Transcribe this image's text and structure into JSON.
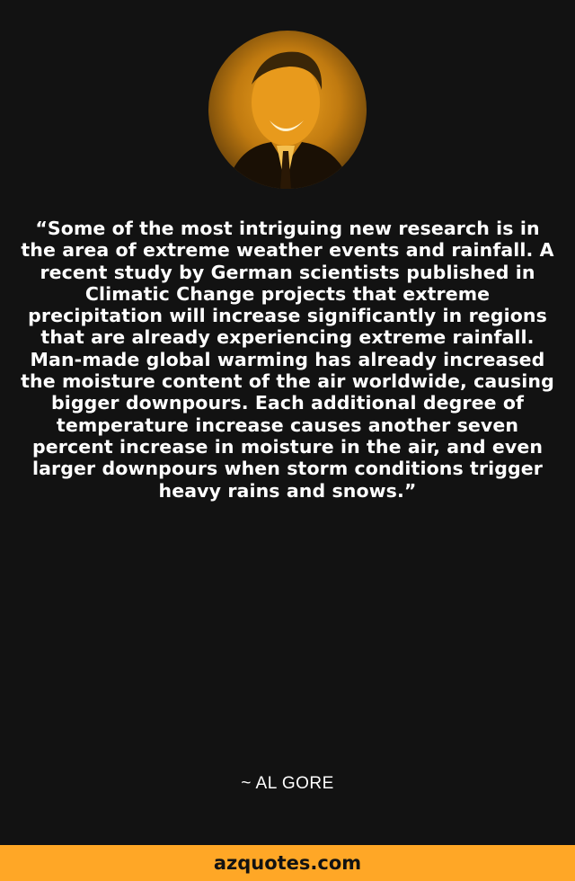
{
  "quote": {
    "text": "“Some of the most intriguing new research is in the area of extreme weather events and rainfall. A recent study by German scientists published in Climatic Change projects that extreme precipitation will increase significantly in regions that are already experiencing extreme rainfall. Man-made global warming has already increased the moisture content of the air worldwide, causing bigger downpours. Each additional degree of temperature increase causes another seven percent increase in moisture in the air, and even larger downpours when storm conditions trigger heavy rains and snows.”",
    "author": "~ AL GORE"
  },
  "footer": {
    "site": "azquotes.com"
  },
  "colors": {
    "background": "#121212",
    "accent": "#ffa726",
    "text": "#ffffff"
  }
}
